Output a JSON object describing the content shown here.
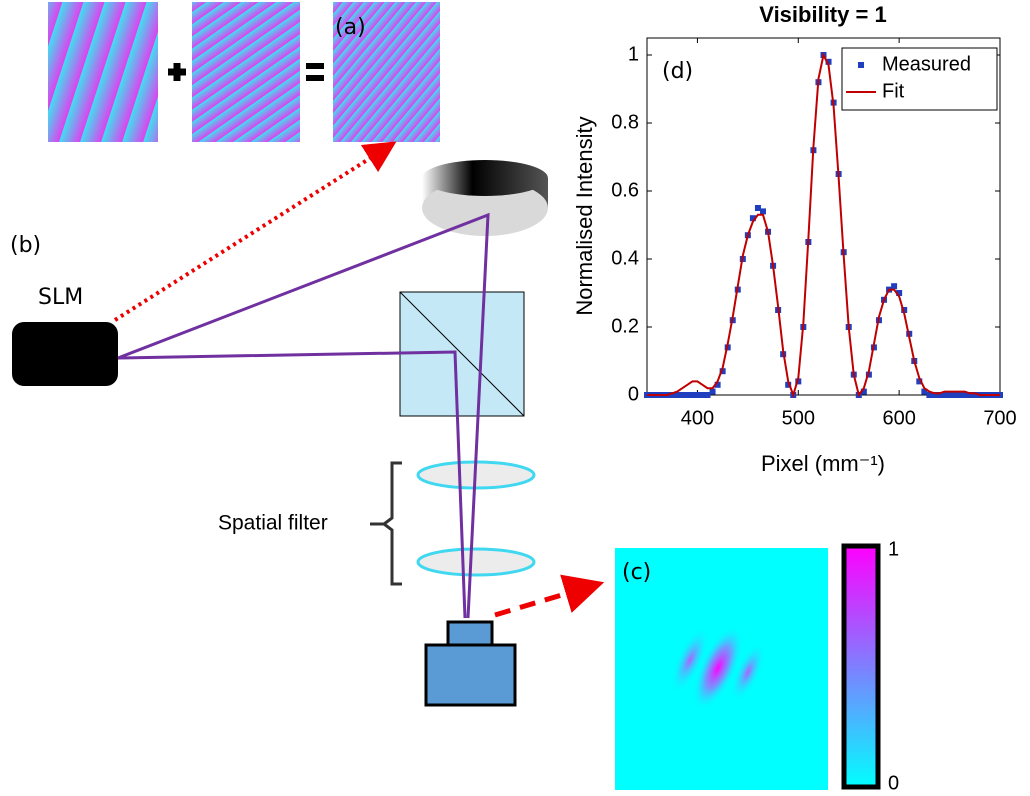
{
  "diagram": {
    "label_a": "(a)",
    "label_b": "(b)",
    "slm": "SLM",
    "spatial_filter": "Spatial filter",
    "label_c": "(c)",
    "colorbar_max": "1",
    "colorbar_min": "0",
    "label_d": "(d)"
  },
  "chart_data": {
    "type": "line",
    "title": "Visibility = 1",
    "xlabel": "Pixel (mm⁻¹)",
    "ylabel": "Normalised Intensity",
    "x": [
      350,
      355,
      360,
      365,
      370,
      375,
      380,
      385,
      390,
      395,
      400,
      405,
      410,
      415,
      420,
      425,
      430,
      435,
      440,
      445,
      450,
      455,
      460,
      465,
      470,
      475,
      480,
      485,
      490,
      495,
      500,
      505,
      510,
      515,
      520,
      525,
      530,
      535,
      540,
      545,
      550,
      555,
      560,
      565,
      570,
      575,
      580,
      585,
      590,
      595,
      600,
      605,
      610,
      615,
      620,
      625,
      630,
      635,
      640,
      645,
      650,
      655,
      660,
      665,
      670,
      675,
      680,
      685,
      690,
      695,
      700
    ],
    "series": [
      {
        "name": "Measured",
        "color": "#1f3fbf",
        "marker": "square",
        "values": [
          0,
          0,
          0,
          0,
          0,
          0,
          0,
          0,
          0,
          0,
          0,
          0,
          0,
          0.01,
          0.03,
          0.07,
          0.14,
          0.22,
          0.31,
          0.4,
          0.47,
          0.52,
          0.55,
          0.54,
          0.48,
          0.38,
          0.25,
          0.12,
          0.03,
          0,
          0.04,
          0.2,
          0.45,
          0.72,
          0.92,
          1.0,
          0.98,
          0.86,
          0.65,
          0.42,
          0.2,
          0.06,
          0,
          0.01,
          0.06,
          0.14,
          0.22,
          0.28,
          0.31,
          0.32,
          0.3,
          0.25,
          0.18,
          0.1,
          0.04,
          0.01,
          0,
          0,
          0,
          0,
          0,
          0,
          0,
          0,
          0,
          0,
          0,
          0,
          0,
          0,
          0
        ]
      },
      {
        "name": "Fit",
        "color": "#c00000",
        "marker": "line",
        "values": [
          0,
          0,
          0,
          0,
          0,
          0.005,
          0.01,
          0.02,
          0.03,
          0.04,
          0.04,
          0.03,
          0.02,
          0.02,
          0.04,
          0.08,
          0.15,
          0.23,
          0.32,
          0.41,
          0.47,
          0.51,
          0.53,
          0.53,
          0.48,
          0.38,
          0.26,
          0.13,
          0.04,
          0,
          0.05,
          0.21,
          0.46,
          0.73,
          0.93,
          1.0,
          0.97,
          0.85,
          0.64,
          0.41,
          0.2,
          0.06,
          0,
          0.02,
          0.07,
          0.15,
          0.23,
          0.28,
          0.31,
          0.31,
          0.29,
          0.24,
          0.17,
          0.1,
          0.05,
          0.02,
          0.01,
          0.005,
          0.005,
          0.01,
          0.01,
          0.01,
          0.01,
          0.01,
          0.005,
          0.005,
          0,
          0,
          0,
          0,
          0
        ]
      }
    ],
    "xlim": [
      350,
      700
    ],
    "ylim": [
      0,
      1.05
    ],
    "xticks": [
      400,
      500,
      600,
      700
    ],
    "yticks": [
      0,
      0.2,
      0.4,
      0.6,
      0.8,
      1
    ],
    "legend": "upper right"
  }
}
